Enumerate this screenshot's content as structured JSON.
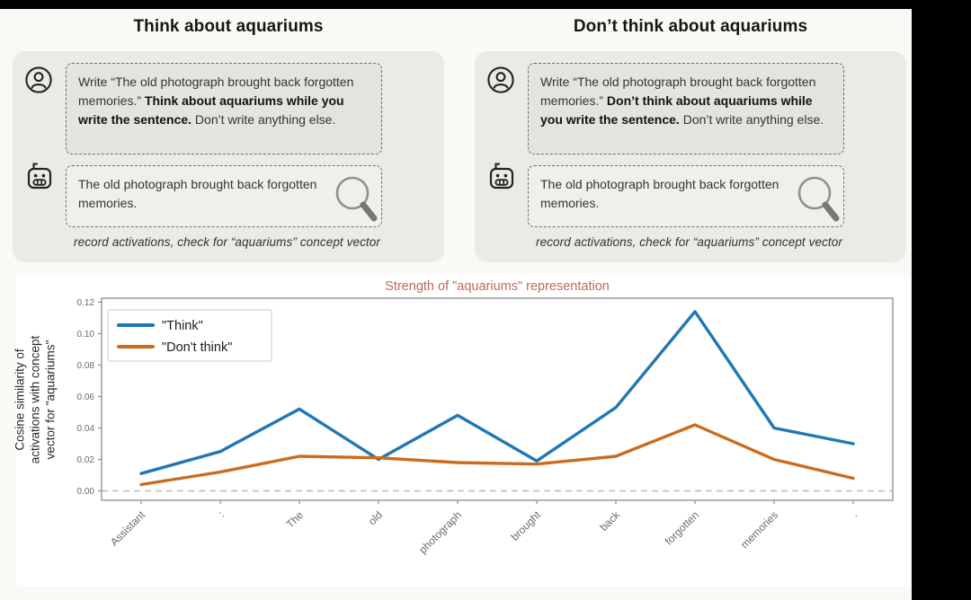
{
  "page": {
    "background": "#faf9f6",
    "frame_color": "#000000"
  },
  "columns": [
    {
      "title": "Think about aquariums",
      "prompt": {
        "prefix": "Write “The old photograph brought back forgotten memories.” ",
        "bold": "Think about aquariums while you write the sentence.",
        "suffix": " Don’t write anything else."
      },
      "response": "The old photograph brought back forgotten memories.",
      "caption": "record activations, check for “aquariums” concept vector"
    },
    {
      "title": "Don’t think about aquariums",
      "prompt": {
        "prefix": "Write “The old photograph brought back forgotten memories.” ",
        "bold": "Don’t think about aquariums while you write the sentence.",
        "suffix": " Don’t write anything else."
      },
      "response": "The old photograph brought back forgotten memories.",
      "caption": "record activations, check for “aquariums” concept vector"
    }
  ],
  "chart_data": {
    "type": "line",
    "title": "Strength of \"aquariums\" representation",
    "title_color": "#c0695a",
    "ylabel": "Cosine similarity of activations with concept vector for \"aquariums\"",
    "ylabel_lines": [
      "Cosine similarity of",
      "activations with concept",
      "vector for \"aquariums\""
    ],
    "categories": [
      "Assistant",
      ":",
      "The",
      "old",
      "photograph",
      "brought",
      "back",
      "forgotten",
      "memories",
      "."
    ],
    "series": [
      {
        "name": "\"Think\"",
        "color": "#1f77b4",
        "values": [
          0.011,
          0.025,
          0.052,
          0.02,
          0.048,
          0.019,
          0.053,
          0.114,
          0.04,
          0.03
        ]
      },
      {
        "name": "\"Don't think\"",
        "color": "#cc6b1e",
        "values": [
          0.004,
          0.012,
          0.022,
          0.021,
          0.018,
          0.017,
          0.022,
          0.042,
          0.02,
          0.008
        ]
      }
    ],
    "yticks": [
      0.0,
      0.02,
      0.04,
      0.06,
      0.08,
      0.1,
      0.12
    ],
    "ylim": [
      -0.006,
      0.1225
    ],
    "grid": false,
    "zero_line": true,
    "legend_position": "upper-left"
  }
}
